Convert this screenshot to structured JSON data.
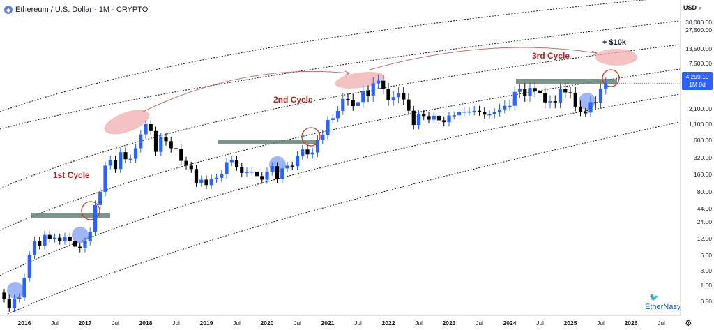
{
  "header": {
    "symbol_icon": "ethereum-icon",
    "title": "Ethereum / U.S. Dollar · 1M · CRYPTO"
  },
  "price_axis": {
    "currency": "USD",
    "current_price": "4,299.19",
    "current_interval": "1M 0d",
    "labels": [
      "30,000.00",
      "27,500.00",
      "13,500.00",
      "7,500.00",
      "2,100.00",
      "1,100.00",
      "600.00",
      "320.00",
      "160.00",
      "80.00",
      "44.00",
      "24.00",
      "12.00",
      "6.00",
      "3.00",
      "1.60",
      "0.80"
    ]
  },
  "time_axis": {
    "labels": [
      {
        "text": "2016",
        "year": true
      },
      {
        "text": "Jul",
        "year": false
      },
      {
        "text": "2017",
        "year": true
      },
      {
        "text": "Jul",
        "year": false
      },
      {
        "text": "2018",
        "year": true
      },
      {
        "text": "Jul",
        "year": false
      },
      {
        "text": "2019",
        "year": true
      },
      {
        "text": "Jul",
        "year": false
      },
      {
        "text": "2020",
        "year": true
      },
      {
        "text": "Jul",
        "year": false
      },
      {
        "text": "2021",
        "year": true
      },
      {
        "text": "Jul",
        "year": false
      },
      {
        "text": "2022",
        "year": true
      },
      {
        "text": "Jul",
        "year": false
      },
      {
        "text": "2023",
        "year": true
      },
      {
        "text": "Jul",
        "year": false
      },
      {
        "text": "2024",
        "year": true
      },
      {
        "text": "Jul",
        "year": false
      },
      {
        "text": "2025",
        "year": true
      },
      {
        "text": "Jul",
        "year": false
      },
      {
        "text": "2026",
        "year": true
      },
      {
        "text": "Jul",
        "year": false
      }
    ]
  },
  "annotations": {
    "cycle1": "1st Cycle",
    "cycle2": "2nd Cycle",
    "cycle3": "3rd Cycle",
    "target": "+ $10k"
  },
  "watermark": "EtherNasyonaL",
  "colors": {
    "up": "#2962ff",
    "down": "#000000",
    "cycle_text": "#b22222",
    "top_ellipse": "#f0a8a8",
    "bottom_circle": "#7d9ef0",
    "band": "#5f7a6f",
    "arrow": "#c07070"
  },
  "chart_data": {
    "type": "candlestick",
    "title": "Ethereum / U.S. Dollar · 1M · CRYPTO",
    "scale": "log",
    "ylim": [
      0.5,
      40000
    ],
    "xlim": [
      "2015-09",
      "2026-10"
    ],
    "grid": false,
    "series": [
      {
        "x": "2015-09",
        "value": 0.9,
        "dir": "down"
      },
      {
        "x": "2015-10",
        "value": 0.6,
        "dir": "down"
      },
      {
        "x": "2015-11",
        "value": 0.9,
        "dir": "up"
      },
      {
        "x": "2015-12",
        "value": 0.95,
        "dir": "up"
      },
      {
        "x": "2016-01",
        "value": 2.2,
        "dir": "up"
      },
      {
        "x": "2016-02",
        "value": 6,
        "dir": "up"
      },
      {
        "x": "2016-03",
        "value": 11,
        "dir": "up"
      },
      {
        "x": "2016-04",
        "value": 9,
        "dir": "down"
      },
      {
        "x": "2016-05",
        "value": 14,
        "dir": "up"
      },
      {
        "x": "2016-06",
        "value": 12,
        "dir": "down"
      },
      {
        "x": "2016-07",
        "value": 12.5,
        "dir": "up"
      },
      {
        "x": "2016-08",
        "value": 11,
        "dir": "down"
      },
      {
        "x": "2016-09",
        "value": 13,
        "dir": "up"
      },
      {
        "x": "2016-10",
        "value": 11,
        "dir": "down"
      },
      {
        "x": "2016-11",
        "value": 8.6,
        "dir": "down"
      },
      {
        "x": "2016-12",
        "value": 8,
        "dir": "down"
      },
      {
        "x": "2017-01",
        "value": 10.7,
        "dir": "up"
      },
      {
        "x": "2017-02",
        "value": 16,
        "dir": "up"
      },
      {
        "x": "2017-03",
        "value": 50,
        "dir": "up"
      },
      {
        "x": "2017-04",
        "value": 80,
        "dir": "up"
      },
      {
        "x": "2017-05",
        "value": 230,
        "dir": "up"
      },
      {
        "x": "2017-06",
        "value": 290,
        "dir": "up"
      },
      {
        "x": "2017-07",
        "value": 200,
        "dir": "down"
      },
      {
        "x": "2017-08",
        "value": 390,
        "dir": "up"
      },
      {
        "x": "2017-09",
        "value": 300,
        "dir": "down"
      },
      {
        "x": "2017-10",
        "value": 305,
        "dir": "up"
      },
      {
        "x": "2017-11",
        "value": 450,
        "dir": "up"
      },
      {
        "x": "2017-12",
        "value": 750,
        "dir": "up"
      },
      {
        "x": "2018-01",
        "value": 1100,
        "dir": "up"
      },
      {
        "x": "2018-02",
        "value": 850,
        "dir": "down"
      },
      {
        "x": "2018-03",
        "value": 395,
        "dir": "down"
      },
      {
        "x": "2018-04",
        "value": 670,
        "dir": "up"
      },
      {
        "x": "2018-05",
        "value": 580,
        "dir": "down"
      },
      {
        "x": "2018-06",
        "value": 450,
        "dir": "down"
      },
      {
        "x": "2018-07",
        "value": 435,
        "dir": "down"
      },
      {
        "x": "2018-08",
        "value": 280,
        "dir": "down"
      },
      {
        "x": "2018-09",
        "value": 230,
        "dir": "down"
      },
      {
        "x": "2018-10",
        "value": 200,
        "dir": "down"
      },
      {
        "x": "2018-11",
        "value": 115,
        "dir": "down"
      },
      {
        "x": "2018-12",
        "value": 130,
        "dir": "up"
      },
      {
        "x": "2019-01",
        "value": 105,
        "dir": "down"
      },
      {
        "x": "2019-02",
        "value": 135,
        "dir": "up"
      },
      {
        "x": "2019-03",
        "value": 140,
        "dir": "up"
      },
      {
        "x": "2019-04",
        "value": 160,
        "dir": "up"
      },
      {
        "x": "2019-05",
        "value": 265,
        "dir": "up"
      },
      {
        "x": "2019-06",
        "value": 290,
        "dir": "up"
      },
      {
        "x": "2019-07",
        "value": 220,
        "dir": "down"
      },
      {
        "x": "2019-08",
        "value": 170,
        "dir": "down"
      },
      {
        "x": "2019-09",
        "value": 180,
        "dir": "up"
      },
      {
        "x": "2019-10",
        "value": 180,
        "dir": "down"
      },
      {
        "x": "2019-11",
        "value": 150,
        "dir": "down"
      },
      {
        "x": "2019-12",
        "value": 130,
        "dir": "down"
      },
      {
        "x": "2020-01",
        "value": 180,
        "dir": "up"
      },
      {
        "x": "2020-02",
        "value": 225,
        "dir": "up"
      },
      {
        "x": "2020-03",
        "value": 135,
        "dir": "down"
      },
      {
        "x": "2020-04",
        "value": 205,
        "dir": "up"
      },
      {
        "x": "2020-05",
        "value": 230,
        "dir": "up"
      },
      {
        "x": "2020-06",
        "value": 225,
        "dir": "down"
      },
      {
        "x": "2020-07",
        "value": 345,
        "dir": "up"
      },
      {
        "x": "2020-08",
        "value": 430,
        "dir": "up"
      },
      {
        "x": "2020-09",
        "value": 360,
        "dir": "down"
      },
      {
        "x": "2020-10",
        "value": 385,
        "dir": "up"
      },
      {
        "x": "2020-11",
        "value": 615,
        "dir": "up"
      },
      {
        "x": "2020-12",
        "value": 735,
        "dir": "up"
      },
      {
        "x": "2021-01",
        "value": 1315,
        "dir": "up"
      },
      {
        "x": "2021-02",
        "value": 1420,
        "dir": "up"
      },
      {
        "x": "2021-03",
        "value": 1920,
        "dir": "up"
      },
      {
        "x": "2021-04",
        "value": 2770,
        "dir": "up"
      },
      {
        "x": "2021-05",
        "value": 2700,
        "dir": "down"
      },
      {
        "x": "2021-06",
        "value": 2270,
        "dir": "down"
      },
      {
        "x": "2021-07",
        "value": 2540,
        "dir": "up"
      },
      {
        "x": "2021-08",
        "value": 3430,
        "dir": "up"
      },
      {
        "x": "2021-09",
        "value": 3000,
        "dir": "down"
      },
      {
        "x": "2021-10",
        "value": 4290,
        "dir": "up"
      },
      {
        "x": "2021-11",
        "value": 4630,
        "dir": "up"
      },
      {
        "x": "2021-12",
        "value": 3680,
        "dir": "down"
      },
      {
        "x": "2022-01",
        "value": 2690,
        "dir": "down"
      },
      {
        "x": "2022-02",
        "value": 2920,
        "dir": "up"
      },
      {
        "x": "2022-03",
        "value": 3280,
        "dir": "up"
      },
      {
        "x": "2022-04",
        "value": 2730,
        "dir": "down"
      },
      {
        "x": "2022-05",
        "value": 1940,
        "dir": "down"
      },
      {
        "x": "2022-06",
        "value": 1070,
        "dir": "down"
      },
      {
        "x": "2022-07",
        "value": 1680,
        "dir": "up"
      },
      {
        "x": "2022-08",
        "value": 1550,
        "dir": "down"
      },
      {
        "x": "2022-09",
        "value": 1330,
        "dir": "down"
      },
      {
        "x": "2022-10",
        "value": 1570,
        "dir": "up"
      },
      {
        "x": "2022-11",
        "value": 1295,
        "dir": "down"
      },
      {
        "x": "2022-12",
        "value": 1195,
        "dir": "down"
      },
      {
        "x": "2023-01",
        "value": 1585,
        "dir": "up"
      },
      {
        "x": "2023-02",
        "value": 1605,
        "dir": "up"
      },
      {
        "x": "2023-03",
        "value": 1820,
        "dir": "up"
      },
      {
        "x": "2023-04",
        "value": 1870,
        "dir": "up"
      },
      {
        "x": "2023-05",
        "value": 1875,
        "dir": "up"
      },
      {
        "x": "2023-06",
        "value": 1935,
        "dir": "up"
      },
      {
        "x": "2023-07",
        "value": 1855,
        "dir": "down"
      },
      {
        "x": "2023-08",
        "value": 1645,
        "dir": "down"
      },
      {
        "x": "2023-09",
        "value": 1670,
        "dir": "up"
      },
      {
        "x": "2023-10",
        "value": 1815,
        "dir": "up"
      },
      {
        "x": "2023-11",
        "value": 2050,
        "dir": "up"
      },
      {
        "x": "2023-12",
        "value": 2280,
        "dir": "up"
      },
      {
        "x": "2024-01",
        "value": 2285,
        "dir": "up"
      },
      {
        "x": "2024-02",
        "value": 3380,
        "dir": "up"
      },
      {
        "x": "2024-03",
        "value": 3650,
        "dir": "up"
      },
      {
        "x": "2024-04",
        "value": 3015,
        "dir": "down"
      },
      {
        "x": "2024-05",
        "value": 3760,
        "dir": "up"
      },
      {
        "x": "2024-06",
        "value": 3435,
        "dir": "down"
      },
      {
        "x": "2024-07",
        "value": 3230,
        "dir": "down"
      },
      {
        "x": "2024-08",
        "value": 2515,
        "dir": "down"
      },
      {
        "x": "2024-09",
        "value": 2600,
        "dir": "up"
      },
      {
        "x": "2024-10",
        "value": 2515,
        "dir": "down"
      },
      {
        "x": "2024-11",
        "value": 3705,
        "dir": "up"
      },
      {
        "x": "2024-12",
        "value": 3330,
        "dir": "down"
      },
      {
        "x": "2025-01",
        "value": 3300,
        "dir": "down"
      },
      {
        "x": "2025-02",
        "value": 2235,
        "dir": "down"
      },
      {
        "x": "2025-03",
        "value": 1820,
        "dir": "down"
      },
      {
        "x": "2025-04",
        "value": 1795,
        "dir": "down"
      },
      {
        "x": "2025-05",
        "value": 2530,
        "dir": "up"
      },
      {
        "x": "2025-06",
        "value": 2485,
        "dir": "down"
      },
      {
        "x": "2025-07",
        "value": 3700,
        "dir": "up"
      },
      {
        "x": "2025-08",
        "value": 4299.19,
        "dir": "up"
      }
    ]
  }
}
